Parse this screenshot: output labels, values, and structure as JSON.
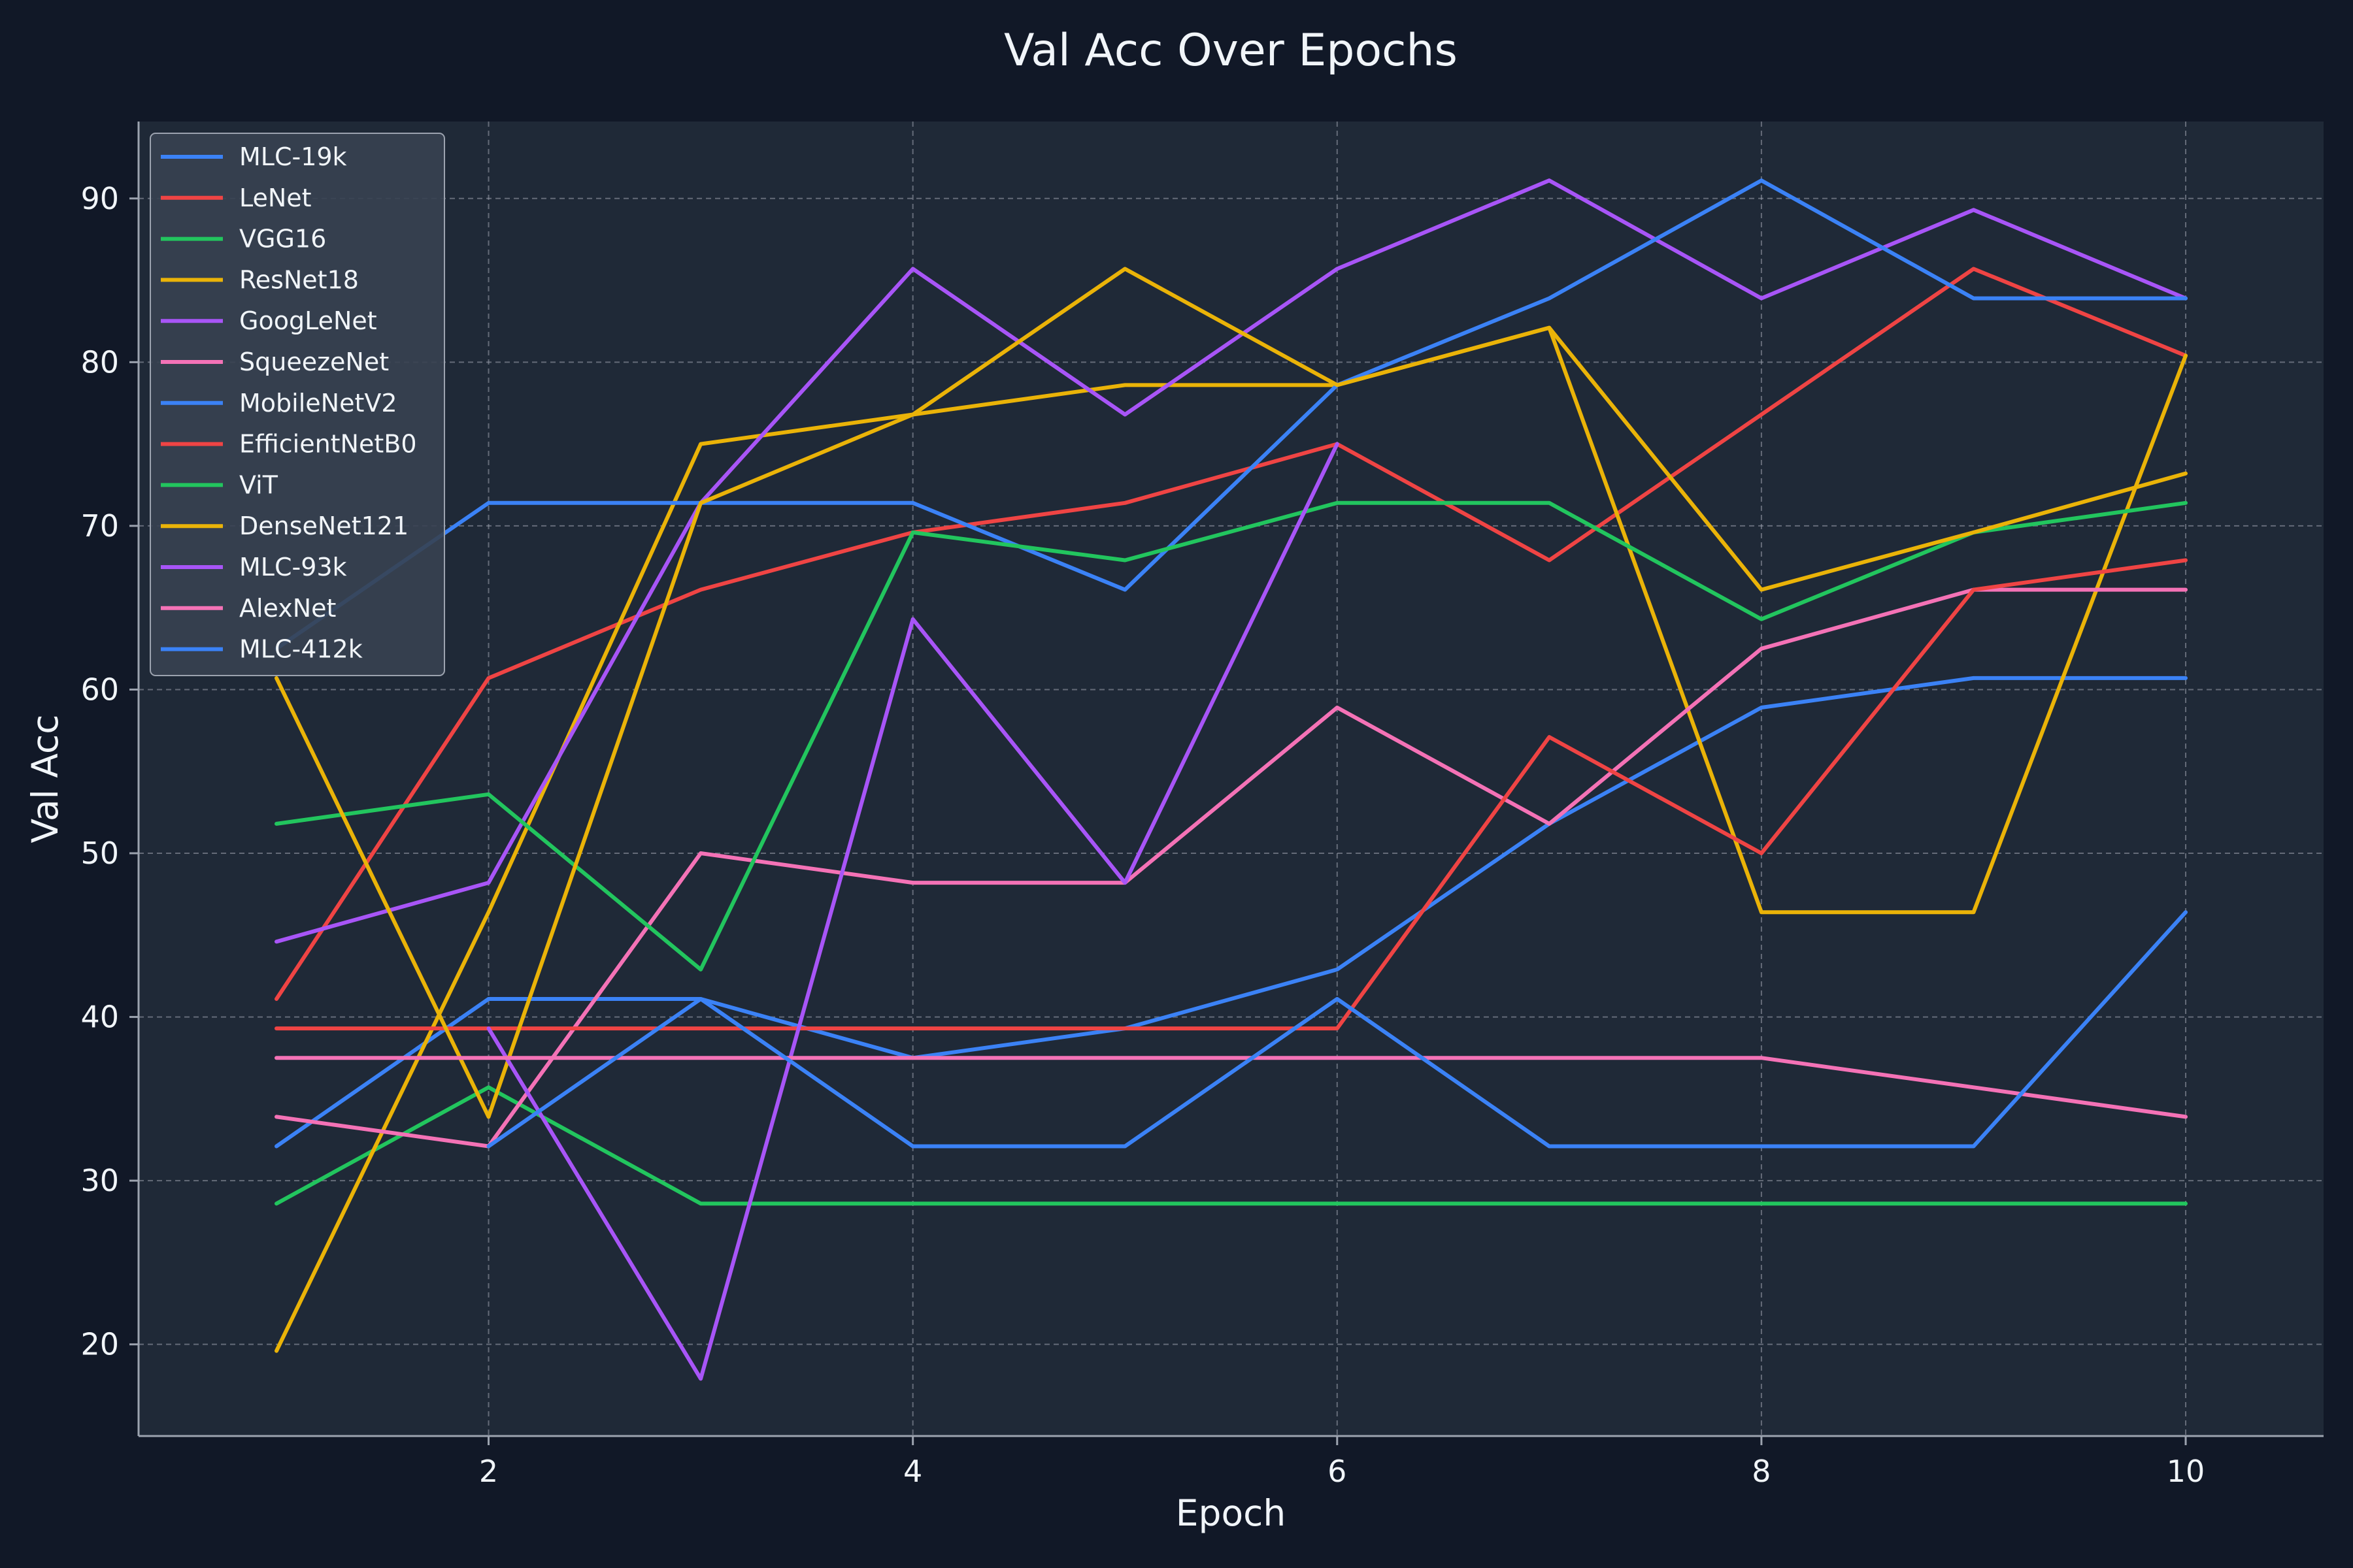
{
  "chart_data": {
    "type": "line",
    "title": "Val Acc Over Epochs",
    "xlabel": "Epoch",
    "ylabel": "Val Acc",
    "xlim": [
      0.35,
      10.65
    ],
    "ylim": [
      14.4,
      94.7
    ],
    "xticks": [
      2,
      4,
      6,
      8,
      10
    ],
    "yticks": [
      20,
      30,
      40,
      50,
      60,
      70,
      80,
      90
    ],
    "grid": true,
    "legend_position": "top-left",
    "x": [
      1,
      2,
      3,
      4,
      5,
      6,
      7,
      8,
      9,
      10
    ],
    "series": [
      {
        "name": "MLC-19k",
        "color": "#3b82f6",
        "values": [
          32.1,
          41.1,
          41.1,
          37.5,
          39.3,
          42.9,
          51.8,
          58.9,
          60.7,
          60.7
        ]
      },
      {
        "name": "LeNet",
        "color": "#ef4444",
        "values": [
          41.1,
          60.7,
          66.1,
          69.6,
          71.4,
          75.0,
          67.9,
          76.8,
          85.7,
          80.4
        ]
      },
      {
        "name": "VGG16",
        "color": "#22c55e",
        "values": [
          28.6,
          35.7,
          28.6,
          28.6,
          28.6,
          28.6,
          28.6,
          28.6,
          28.6,
          28.6
        ]
      },
      {
        "name": "ResNet18",
        "color": "#eab308",
        "values": [
          19.6,
          46.4,
          75.0,
          76.8,
          78.6,
          78.6,
          82.1,
          46.4,
          46.4,
          80.4
        ]
      },
      {
        "name": "GoogLeNet",
        "color": "#a855f7",
        "values": [
          44.6,
          48.2,
          71.4,
          85.7,
          76.8,
          85.7,
          91.1,
          83.9,
          89.3,
          83.9
        ]
      },
      {
        "name": "SqueezeNet",
        "color": "#f472b6",
        "values": [
          33.9,
          32.1,
          50.0,
          48.2,
          48.2,
          58.9,
          51.8,
          62.5,
          66.1,
          66.1
        ]
      },
      {
        "name": "MobileNetV2",
        "color": "#3b82f6",
        "values": [
          62.5,
          71.4,
          71.4,
          71.4,
          66.1,
          78.6,
          83.9,
          91.1,
          83.9,
          83.9
        ]
      },
      {
        "name": "EfficientNetB0",
        "color": "#ef4444",
        "values": [
          39.3,
          39.3,
          39.3,
          39.3,
          39.3,
          39.3,
          57.1,
          50.0,
          66.1,
          67.9
        ]
      },
      {
        "name": "ViT",
        "color": "#22c55e",
        "values": [
          51.8,
          53.6,
          42.9,
          69.6,
          67.9,
          71.4,
          71.4,
          64.3,
          69.6,
          71.4
        ]
      },
      {
        "name": "DenseNet121",
        "color": "#eab308",
        "values": [
          60.7,
          33.9,
          71.4,
          76.8,
          85.7,
          78.6,
          82.1,
          66.1,
          69.6,
          73.2
        ]
      },
      {
        "name": "MLC-93k",
        "color": "#a855f7",
        "values": [
          null,
          39.3,
          17.9,
          64.3,
          48.2,
          75.0,
          null,
          null,
          null,
          null
        ]
      },
      {
        "name": "AlexNet",
        "color": "#f472b6",
        "values": [
          37.5,
          37.5,
          37.5,
          37.5,
          37.5,
          37.5,
          37.5,
          37.5,
          35.7,
          33.9
        ]
      },
      {
        "name": "MLC-412k",
        "color": "#3b82f6",
        "values": [
          null,
          32.1,
          41.1,
          32.1,
          32.1,
          41.1,
          32.1,
          32.1,
          32.1,
          46.4
        ]
      }
    ]
  }
}
